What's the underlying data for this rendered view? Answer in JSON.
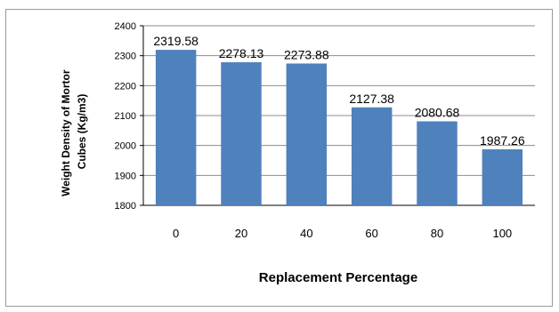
{
  "chart_data": {
    "type": "bar",
    "categories": [
      "0",
      "20",
      "40",
      "60",
      "80",
      "100"
    ],
    "values": [
      2319.58,
      2278.13,
      2273.88,
      2127.38,
      2080.68,
      1987.26
    ],
    "data_labels": [
      "2319.58",
      "2278.13",
      "2273.88",
      "2127.38",
      "2080.68",
      "1987.26"
    ],
    "title": "",
    "xlabel": "Replacement Percentage",
    "ylabel_lines": [
      "Weight Density of Mortor",
      "Cubes (Kg/m3)"
    ],
    "ylim": [
      1800,
      2400
    ],
    "yticks": [
      1800,
      1900,
      2000,
      2100,
      2200,
      2300,
      2400
    ],
    "grid": true,
    "legend": "none",
    "colors": {
      "bar": "#4f81bd",
      "grid": "#8c8c8c"
    }
  }
}
